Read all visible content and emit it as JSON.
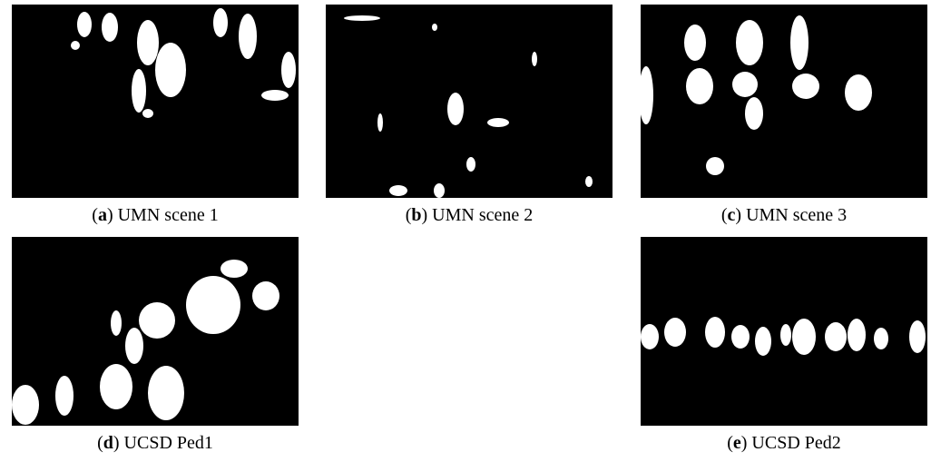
{
  "figure": {
    "panels": [
      {
        "caption": [
          "(",
          "a",
          ") UMN scene 1"
        ]
      },
      {
        "caption": [
          "(",
          "b",
          ") UMN scene 2"
        ]
      },
      {
        "caption": [
          "(",
          "c",
          ") UMN scene 3"
        ]
      },
      {
        "caption": [
          "(",
          "d",
          ") UCSD Ped1"
        ]
      },
      {
        "caption": [
          "(",
          "e",
          ") UCSD Ped2"
        ]
      }
    ]
  }
}
